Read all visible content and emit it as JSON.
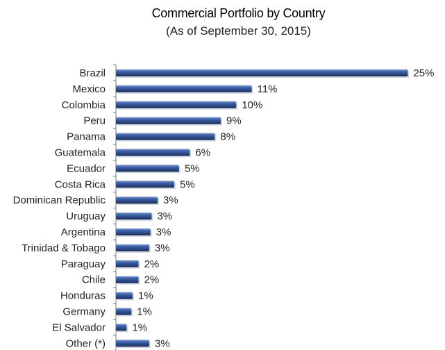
{
  "chart_data": {
    "type": "bar",
    "orientation": "horizontal",
    "title": "Commercial Portfolio by Country",
    "subtitle": "(As of September 30, 2015)",
    "categories": [
      "Brazil",
      "Mexico",
      "Colombia",
      "Peru",
      "Panama",
      "Guatemala",
      "Ecuador",
      "Costa Rica",
      "Dominican Republic",
      "Uruguay",
      "Argentina",
      "Trinidad & Tobago",
      "Paraguay",
      "Chile",
      "Honduras",
      "Germany",
      "El Salvador",
      "Other (*)"
    ],
    "values": [
      25,
      11,
      10,
      9,
      8,
      6,
      5,
      5,
      3,
      3,
      3,
      3,
      2,
      2,
      1,
      1,
      1,
      3
    ],
    "bar_lengths": [
      24.5,
      11.4,
      10.1,
      8.8,
      8.3,
      6.2,
      5.3,
      4.9,
      3.5,
      3.0,
      2.9,
      2.8,
      1.9,
      1.9,
      1.4,
      1.3,
      0.9,
      2.8
    ],
    "value_labels": [
      "25%",
      "11%",
      "10%",
      "9%",
      "8%",
      "6%",
      "5%",
      "5%",
      "3%",
      "3%",
      "3%",
      "3%",
      "2%",
      "2%",
      "1%",
      "1%",
      "1%",
      "3%"
    ],
    "colors": {
      "bar": "#2f4f8f",
      "bar_highlight": "#7f9bd0",
      "bar_shadow": "#17284f",
      "axis": "#777777"
    }
  }
}
